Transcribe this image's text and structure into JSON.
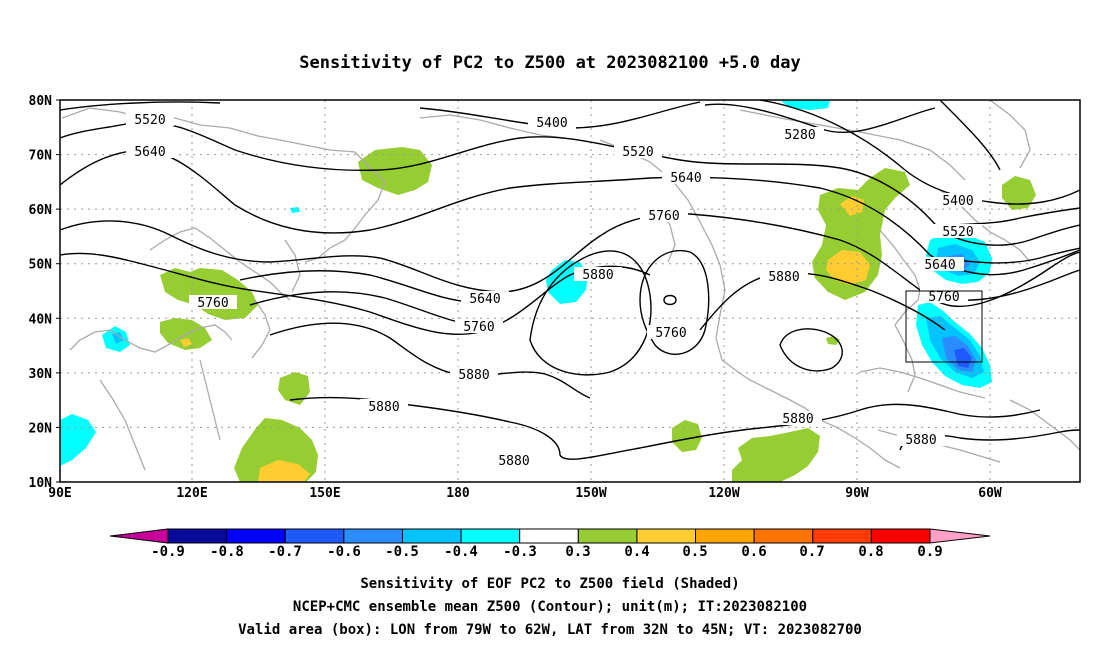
{
  "title": "Sensitivity of PC2 to Z500 at 2023082100 +5.0 day",
  "axes": {
    "lat_labels": [
      "80N",
      "70N",
      "60N",
      "50N",
      "40N",
      "30N",
      "20N",
      "10N"
    ],
    "lon_labels": [
      "90E",
      "120E",
      "150E",
      "180",
      "150W",
      "120W",
      "90W",
      "60W"
    ]
  },
  "contour_labels": [
    {
      "text": "5520"
    },
    {
      "text": "5640"
    },
    {
      "text": "5400"
    },
    {
      "text": "5280"
    },
    {
      "text": "5520"
    },
    {
      "text": "5640"
    },
    {
      "text": "5760"
    },
    {
      "text": "5400"
    },
    {
      "text": "5520"
    },
    {
      "text": "5640"
    },
    {
      "text": "5760"
    },
    {
      "text": "5880"
    },
    {
      "text": "5880"
    },
    {
      "text": "5760"
    },
    {
      "text": "5640"
    },
    {
      "text": "5760"
    },
    {
      "text": "5760"
    },
    {
      "text": "5880"
    },
    {
      "text": "5880"
    },
    {
      "text": "5880"
    },
    {
      "text": "5880"
    },
    {
      "text": "5880"
    }
  ],
  "colorbar": {
    "labels": [
      "-0.9",
      "-0.8",
      "-0.7",
      "-0.6",
      "-0.5",
      "-0.4",
      "-0.3",
      "0.3",
      "0.4",
      "0.5",
      "0.6",
      "0.7",
      "0.8",
      "0.9"
    ],
    "colors": [
      "#0a0a9a",
      "#0000ff",
      "#1e5aff",
      "#2a8cff",
      "#00c3ff",
      "#00ffff",
      "#ffffff",
      "#96cd32",
      "#ffcd32",
      "#ffa500",
      "#ff7300",
      "#ff3c00",
      "#ff0000"
    ],
    "low_end_color": "#c8009b",
    "high_end_color": "#ffa0c8"
  },
  "captions": [
    "Sensitivity of EOF PC2 to Z500 field (Shaded)",
    "NCEP+CMC ensemble mean Z500 (Contour); unit(m); IT:2023082100",
    "Valid area (box): LON from 79W to 62W, LAT from 32N to 45N; VT: 2023082700"
  ]
}
